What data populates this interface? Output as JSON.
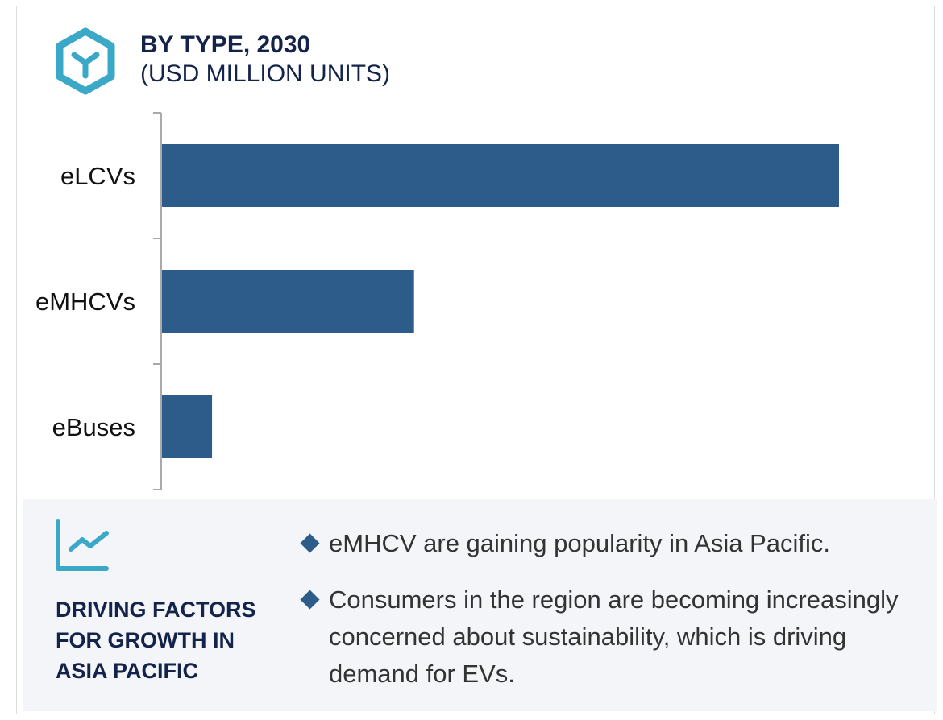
{
  "header": {
    "title": "BY TYPE, 2030",
    "subtitle": "(USD MILLION UNITS)",
    "icon": "hexagon-y-icon"
  },
  "chart_data": {
    "type": "bar",
    "orientation": "horizontal",
    "title": "BY TYPE, 2030",
    "subtitle": "(USD MILLION UNITS)",
    "categories": [
      "eLCVs",
      "eMHCVs",
      "eBuses"
    ],
    "values": [
      100,
      37.3,
      7.5
    ],
    "value_note": "relative values; no axis scale shown",
    "xlim": [
      0,
      100
    ],
    "grid": false,
    "bar_color": "#2d5c8a"
  },
  "panel": {
    "heading": "DRIVING FACTORS FOR GROWTH IN ASIA PACIFIC",
    "icon": "trend-chart-icon",
    "bullets": [
      "eMHCV are gaining popularity in Asia Pacific.",
      "Consumers in the region are becoming increasingly concerned about sustainability, which is driving demand for EVs."
    ]
  },
  "colors": {
    "accent": "#3aa8c6",
    "bar": "#2d5c8a",
    "heading": "#13234a",
    "panel_bg": "#f3f5f9"
  }
}
